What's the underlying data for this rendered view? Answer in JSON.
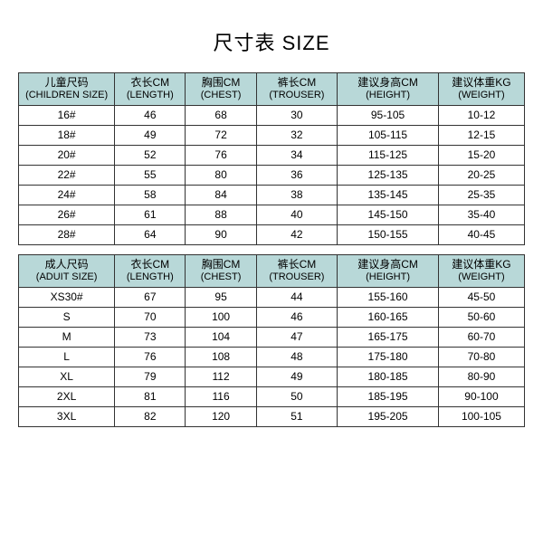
{
  "title": "尺寸表 SIZE",
  "header_bg": "#b8d8d8",
  "border_color": "#333333",
  "children": {
    "columns": [
      {
        "cn": "儿童尺码",
        "en": "(CHILDREN SIZE)"
      },
      {
        "cn": "衣长CM",
        "en": "(LENGTH)"
      },
      {
        "cn": "胸围CM",
        "en": "(CHEST)"
      },
      {
        "cn": "裤长CM",
        "en": "(TROUSER)"
      },
      {
        "cn": "建议身高CM",
        "en": "(HEIGHT)"
      },
      {
        "cn": "建议体重KG",
        "en": "(WEIGHT)"
      }
    ],
    "rows": [
      [
        "16#",
        "46",
        "68",
        "30",
        "95-105",
        "10-12"
      ],
      [
        "18#",
        "49",
        "72",
        "32",
        "105-115",
        "12-15"
      ],
      [
        "20#",
        "52",
        "76",
        "34",
        "115-125",
        "15-20"
      ],
      [
        "22#",
        "55",
        "80",
        "36",
        "125-135",
        "20-25"
      ],
      [
        "24#",
        "58",
        "84",
        "38",
        "135-145",
        "25-35"
      ],
      [
        "26#",
        "61",
        "88",
        "40",
        "145-150",
        "35-40"
      ],
      [
        "28#",
        "64",
        "90",
        "42",
        "150-155",
        "40-45"
      ]
    ]
  },
  "adult": {
    "columns": [
      {
        "cn": "成人尺码",
        "en": "(ADUIT SIZE)"
      },
      {
        "cn": "衣长CM",
        "en": "(LENGTH)"
      },
      {
        "cn": "胸围CM",
        "en": "(CHEST)"
      },
      {
        "cn": "裤长CM",
        "en": "(TROUSER)"
      },
      {
        "cn": "建议身高CM",
        "en": "(HEIGHT)"
      },
      {
        "cn": "建议体重KG",
        "en": "(WEIGHT)"
      }
    ],
    "rows": [
      [
        "XS30#",
        "67",
        "95",
        "44",
        "155-160",
        "45-50"
      ],
      [
        "S",
        "70",
        "100",
        "46",
        "160-165",
        "50-60"
      ],
      [
        "M",
        "73",
        "104",
        "47",
        "165-175",
        "60-70"
      ],
      [
        "L",
        "76",
        "108",
        "48",
        "175-180",
        "70-80"
      ],
      [
        "XL",
        "79",
        "112",
        "49",
        "180-185",
        "80-90"
      ],
      [
        "2XL",
        "81",
        "116",
        "50",
        "185-195",
        "90-100"
      ],
      [
        "3XL",
        "82",
        "120",
        "51",
        "195-205",
        "100-105"
      ]
    ]
  }
}
